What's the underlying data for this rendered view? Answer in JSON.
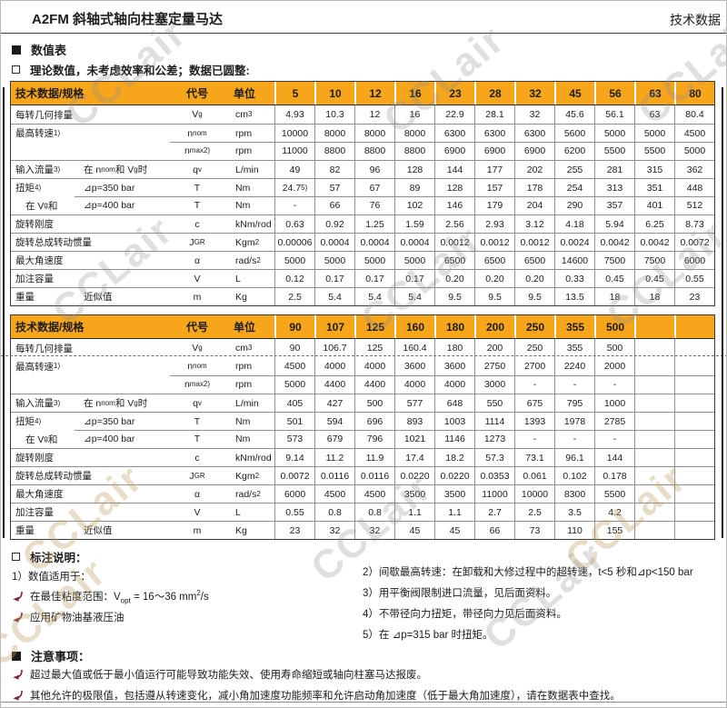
{
  "page": {
    "title": "A2FM 斜轴式轴向柱塞定量马达",
    "corner": "技术数据",
    "watermark": "CCLair"
  },
  "section": {
    "values_heading": "数值表",
    "values_note": "理论数值，未考虑效率和公差；数据已圆整:"
  },
  "columns": {
    "spec": "技术数据/规格",
    "code": "代号",
    "unit": "单位"
  },
  "rows_meta": [
    {
      "key": "vg",
      "label": "每转几何排量",
      "sub": null,
      "code": "V_{g}",
      "unit": "cm^{3}"
    },
    {
      "key": "nnom",
      "label": "最高转速 ^{1)}",
      "sub": null,
      "code": "n_{nom}",
      "unit": "rpm"
    },
    {
      "key": "nmax",
      "label": "",
      "sub": null,
      "code": "n_{max}^{2)}",
      "unit": "rpm"
    },
    {
      "key": "qv",
      "label": "输入流量 ^{3)}",
      "sub": "在 n_{nom} 和 V_{g}时",
      "code": "q_{v}",
      "unit": "L/min"
    },
    {
      "key": "t350",
      "label": "扭矩 ^{4)}",
      "sub": "⊿p=350 bar",
      "code": "T",
      "unit": "Nm"
    },
    {
      "key": "t400",
      "label": "在 V_{g}和",
      "sub": "⊿p=400 bar",
      "code": "T",
      "unit": "Nm"
    },
    {
      "key": "c",
      "label": "旋转刚度",
      "sub": null,
      "code": "c",
      "unit": "kNm/rod"
    },
    {
      "key": "jgr",
      "label": "旋转总成转动惯量",
      "sub": null,
      "code": "J_{GR}",
      "unit": "Kgm^{2}"
    },
    {
      "key": "alpha",
      "label": "最大角速度",
      "sub": null,
      "code": "α",
      "unit": "rad/s^{2}"
    },
    {
      "key": "v",
      "label": "加注容量",
      "sub": null,
      "code": "V",
      "unit": "L"
    },
    {
      "key": "m",
      "label": "重量",
      "sub": "近似值",
      "code": "m",
      "unit": "Kg"
    }
  ],
  "table1": {
    "sizes": [
      "5",
      "10",
      "12",
      "16",
      "23",
      "28",
      "32",
      "45",
      "56",
      "63",
      "80"
    ],
    "values": {
      "vg": [
        "4.93",
        "10.3",
        "12",
        "16",
        "22.9",
        "28.1",
        "32",
        "45.6",
        "56.1",
        "63",
        "80.4"
      ],
      "nnom": [
        "10000",
        "8000",
        "8000",
        "8000",
        "6300",
        "6300",
        "6300",
        "5600",
        "5000",
        "5000",
        "4500"
      ],
      "nmax": [
        "11000",
        "8800",
        "8800",
        "8800",
        "6900",
        "6900",
        "6900",
        "6200",
        "5500",
        "5500",
        "5000"
      ],
      "qv": [
        "49",
        "82",
        "96",
        "128",
        "144",
        "177",
        "202",
        "255",
        "281",
        "315",
        "362"
      ],
      "t350": [
        "24.7^{5)}",
        "57",
        "67",
        "89",
        "128",
        "157",
        "178",
        "254",
        "313",
        "351",
        "448"
      ],
      "t400": [
        "-",
        "66",
        "76",
        "102",
        "146",
        "179",
        "204",
        "290",
        "357",
        "401",
        "512"
      ],
      "c": [
        "0.63",
        "0.92",
        "1.25",
        "1.59",
        "2.56",
        "2.93",
        "3.12",
        "4.18",
        "5.94",
        "6.25",
        "8.73"
      ],
      "jgr": [
        "0.00006",
        "0.0004",
        "0.0004",
        "0.0004",
        "0.0012",
        "0.0012",
        "0.0012",
        "0.0024",
        "0.0042",
        "0.0042",
        "0.0072"
      ],
      "alpha": [
        "5000",
        "5000",
        "5000",
        "5000",
        "6500",
        "6500",
        "6500",
        "14600",
        "7500",
        "7500",
        "6000"
      ],
      "v": [
        "0.12",
        "0.17",
        "0.17",
        "0.17",
        "0.20",
        "0.20",
        "0.20",
        "0.33",
        "0.45",
        "0.45",
        "0.55"
      ],
      "m": [
        "2.5",
        "5.4",
        "5.4",
        "5.4",
        "9.5",
        "9.5",
        "9.5",
        "13.5",
        "18",
        "18",
        "23"
      ]
    }
  },
  "table2": {
    "sizes": [
      "90",
      "107",
      "125",
      "160",
      "180",
      "200",
      "250",
      "355",
      "500",
      "",
      ""
    ],
    "values": {
      "vg": [
        "90",
        "106.7",
        "125",
        "160.4",
        "180",
        "200",
        "250",
        "355",
        "500",
        "",
        ""
      ],
      "nnom": [
        "4500",
        "4000",
        "4000",
        "3600",
        "3600",
        "2750",
        "2700",
        "2240",
        "2000",
        "",
        ""
      ],
      "nmax": [
        "5000",
        "4400",
        "4400",
        "4000",
        "4000",
        "3000",
        "-",
        "-",
        "-",
        "",
        ""
      ],
      "qv": [
        "405",
        "427",
        "500",
        "577",
        "648",
        "550",
        "675",
        "795",
        "1000",
        "",
        ""
      ],
      "t350": [
        "501",
        "594",
        "696",
        "893",
        "1003",
        "1114",
        "1393",
        "1978",
        "2785",
        "",
        ""
      ],
      "t400": [
        "573",
        "679",
        "796",
        "1021",
        "1146",
        "1273",
        "-",
        "-",
        "-",
        "",
        ""
      ],
      "c": [
        "9.14",
        "11.2",
        "11.9",
        "17.4",
        "18.2",
        "57.3",
        "73.1",
        "96.1",
        "144",
        "",
        ""
      ],
      "jgr": [
        "0.0072",
        "0.0116",
        "0.0116",
        "0.0220",
        "0.0220",
        "0.0353",
        "0.061",
        "0.102",
        "0.178",
        "",
        ""
      ],
      "alpha": [
        "6000",
        "4500",
        "4500",
        "3500",
        "3500",
        "11000",
        "10000",
        "8300",
        "5500",
        "",
        ""
      ],
      "v": [
        "0.55",
        "0.8",
        "0.8",
        "1.1",
        "1.1",
        "2.7",
        "2.5",
        "3.5",
        "4.2",
        "",
        ""
      ],
      "m": [
        "23",
        "32",
        "32",
        "45",
        "45",
        "66",
        "73",
        "110",
        "155",
        "",
        ""
      ]
    }
  },
  "notes": {
    "heading": "标注说明：",
    "left_items": [
      "1）数值适用于："
    ],
    "left_bullets": [
      "在最佳粘度范围：V_{opt} = 16～36 mm^{2}/s",
      "应用矿物油基液压油"
    ],
    "right_items": [
      "2）间歇最高转速：在卸载和大修过程中的超转速，t<5 秒和⊿p<150 bar",
      "3）用平衡阀限制进口流量，见后面资料。",
      "4）不带径向力扭矩，带径向力见后面资料。",
      "5）在 ⊿p=315 bar 时扭矩。"
    ]
  },
  "notice": {
    "heading": "注意事项：",
    "items": [
      "超过最大值或低于最小值运行可能导致功能失效、使用寿命缩短或轴向柱塞马达报废。",
      "其他允许的极限值，包括遵从转速变化，减小角加速度功能频率和允许启动角加速度（低于最大角加速度），请在数据表中查找。"
    ]
  },
  "colors": {
    "header_bg": "#F7A61B",
    "bullet_arrow": "#7a2535",
    "watermark_gray": "#8c8c8c"
  }
}
